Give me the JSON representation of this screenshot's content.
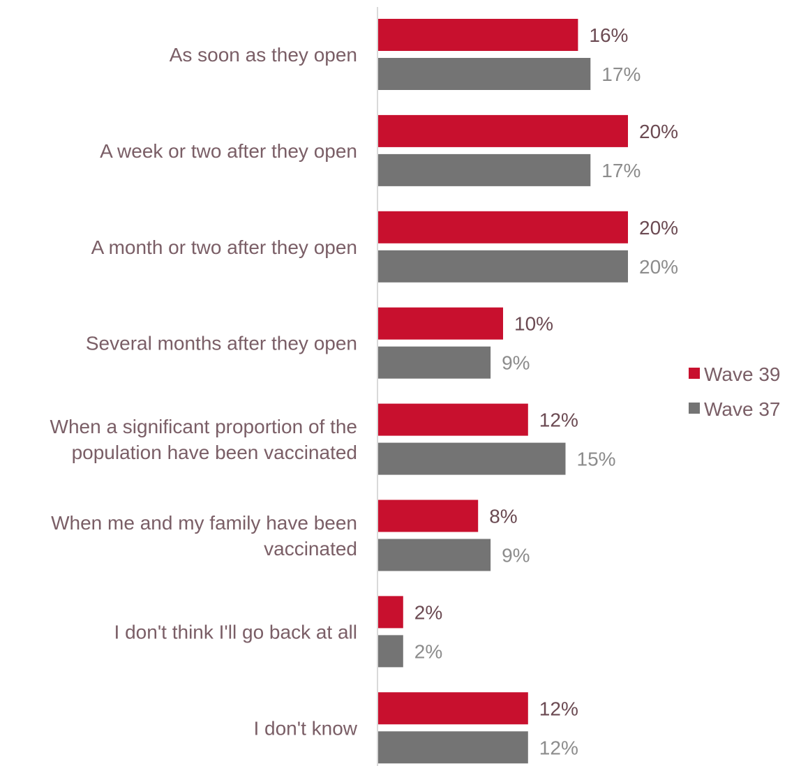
{
  "chart_data": {
    "type": "bar",
    "orientation": "horizontal",
    "categories": [
      [
        "As soon as they open"
      ],
      [
        "A week or two after they open"
      ],
      [
        "A month or two after they open"
      ],
      [
        "Several months after they open"
      ],
      [
        "When a significant proportion of the",
        "population have been vaccinated"
      ],
      [
        "When me and my family have been",
        "vaccinated"
      ],
      [
        "I don't think I'll go back at all"
      ],
      [
        "I don't know"
      ]
    ],
    "series": [
      {
        "name": "Wave 39",
        "color": "#c8102e",
        "label_color": "#6b4a52",
        "values": [
          16,
          20,
          20,
          10,
          12,
          8,
          2,
          12
        ],
        "labels": [
          "16%",
          "20%",
          "20%",
          "10%",
          "12%",
          "8%",
          "2%",
          "12%"
        ]
      },
      {
        "name": "Wave 37",
        "color": "#747474",
        "label_color": "#8c8c8c",
        "values": [
          17,
          17,
          20,
          9,
          15,
          9,
          2,
          12
        ],
        "labels": [
          "17%",
          "17%",
          "20%",
          "9%",
          "15%",
          "9%",
          "2%",
          "12%"
        ]
      }
    ],
    "value_unit": "%",
    "xlim": [
      0,
      20
    ],
    "grid": false,
    "legend_position": "right"
  }
}
